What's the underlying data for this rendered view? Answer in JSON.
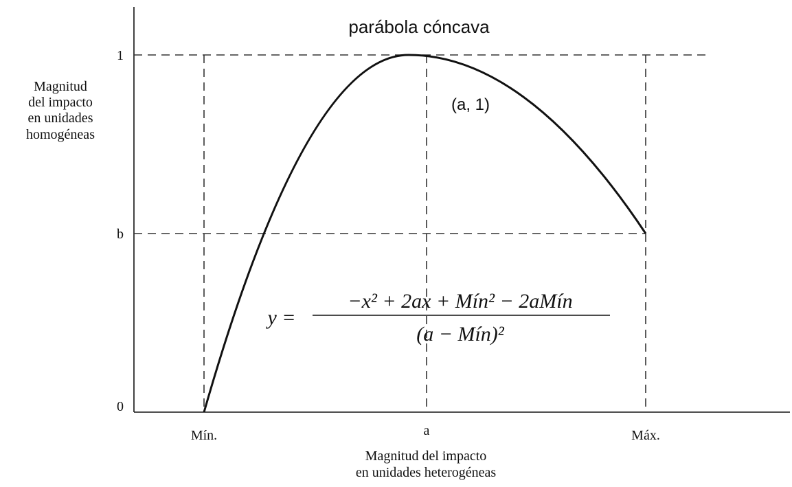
{
  "title": "parábola cóncava",
  "y_axis": {
    "label": [
      "Magnitud",
      "del impacto",
      "en unidades",
      "homogéneas"
    ],
    "ticks": [
      "1",
      "b",
      "0"
    ]
  },
  "x_axis": {
    "label": [
      "Magnitud del impacto",
      "en unidades heterogéneas"
    ],
    "ticks": [
      "Mín.",
      "a",
      "Máx."
    ]
  },
  "point_label": "(a, 1)",
  "formula": {
    "lhs": "y =",
    "numerator": "−x² + 2ax + Mín² − 2aMín",
    "denominator": "(a − Mín)²"
  }
}
